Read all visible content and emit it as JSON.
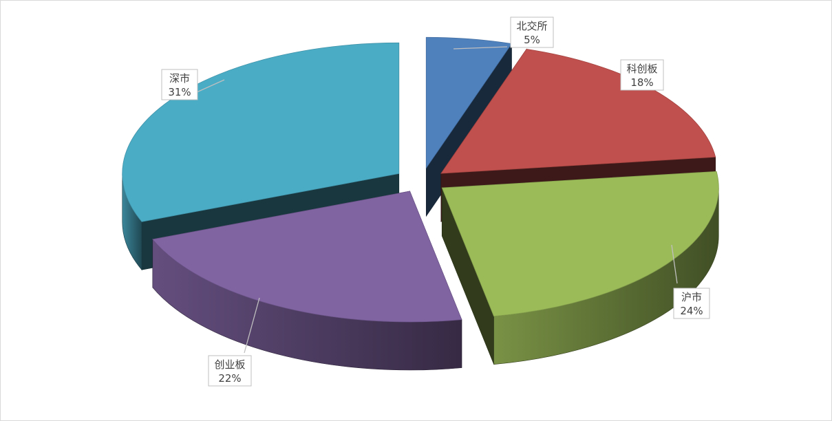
{
  "chart_data": {
    "type": "pie",
    "style": "3d-exploded",
    "title": "",
    "legend": "none",
    "data_labels": "callout",
    "categories": [
      "北交所",
      "科创板",
      "沪市",
      "创业板",
      "深市"
    ],
    "values": [
      5,
      18,
      24,
      22,
      31
    ],
    "labels": [
      "5%",
      "18%",
      "24%",
      "22%",
      "31%"
    ],
    "colors": [
      "#4F81BD",
      "#C0504D",
      "#9BBB59",
      "#8064A2",
      "#4BACC6"
    ]
  }
}
